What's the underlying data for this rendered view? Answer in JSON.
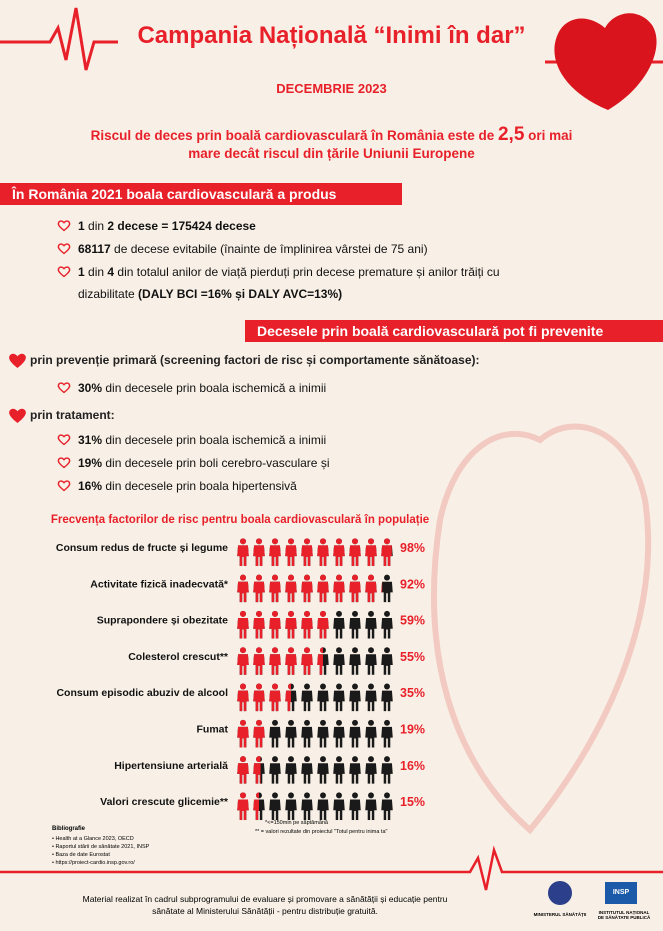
{
  "header": {
    "title": "Campania Națională “Inimi în dar”",
    "date": "DECEMBRIE 2023",
    "subtitle": [
      "Riscul de deces prin boală cardiovasculară în România este de ",
      "2,5",
      " ori mai",
      "mare decât riscul din țările Uniunii Europene"
    ]
  },
  "section1": {
    "heading": "În România 2021 boala cardiovasculară a produs",
    "items": [
      [
        "1",
        " din ",
        "2",
        " decese = 175424 decese"
      ],
      [
        "68117",
        " de decese evitabile (înainte de împlinirea vârstei de 75 ani)"
      ],
      [
        "1",
        " din ",
        "4",
        " din totalul anilor de viață pierduți prin decese premature și anilor trăiți cu",
        "dizabilitate ",
        "(DALY BCI =16% și DALY AVC=13%)"
      ]
    ]
  },
  "section2": {
    "heading": "Decesele prin boală cardiovasculară pot fi prevenite",
    "prevention": {
      "label": "prin prevenție primară (screening factori de risc și comportamente sănătoase):",
      "items": [
        [
          "30%",
          " din decesele prin boala ischemică a inimii"
        ]
      ]
    },
    "treatment": {
      "label": "prin tratament:",
      "items": [
        [
          "31%",
          " din decesele prin boala ischemică a inimii"
        ],
        [
          "19%",
          " din decesele prin boli cerebro-vasculare și"
        ],
        [
          "16%",
          " din decesele prin boala hipertensivă"
        ]
      ]
    }
  },
  "chart_data": {
    "type": "pictogram",
    "title": "Frecvența factorilor de risc pentru boala cardiovasculară în populație",
    "categories": [
      "Consum redus de fructe și legume",
      "Activitate fizică inadecvată*",
      "Suprapondere și obezitate",
      "Colesterol crescut**",
      "Consum episodic abuziv de alcool",
      "Fumat",
      "Hipertensiune arterială",
      "Valori crescute glicemie**"
    ],
    "values": [
      98,
      92,
      59,
      55,
      35,
      19,
      16,
      15
    ],
    "value_labels": [
      "98%",
      "92%",
      "59%",
      "55%",
      "35%",
      "19%",
      "16%",
      "15%"
    ],
    "xlim": [
      0,
      100
    ],
    "color": "#e8202a",
    "rest_color": "#1a1a1a"
  },
  "notes": [
    "*<=150min pe săptămână",
    "** = valori rezultate din proiectul \"Totul pentru inima ta\""
  ],
  "bibliography": {
    "title": "Bibliografie",
    "items": [
      "Health at a Glance 2023, OECD",
      "Raportul stării de sănătate 2021, INSP",
      "Baza de date Eurostat",
      "https://proiect-cardio.insp.gov.ro/"
    ]
  },
  "footer": {
    "text": [
      "Material realizat în cadrul subprogramului de evaluare și promovare a sănătății și educație pentru",
      "sănătate al Ministerului Sănătății -  pentru distribuție gratuită."
    ],
    "logos": [
      {
        "name": "MINISTERUL SĂNĂTĂȚII"
      },
      {
        "name": "INSP",
        "caption": "INSTITUTUL NAȚIONAL DE SĂNĂTATE PUBLICĂ"
      }
    ]
  }
}
